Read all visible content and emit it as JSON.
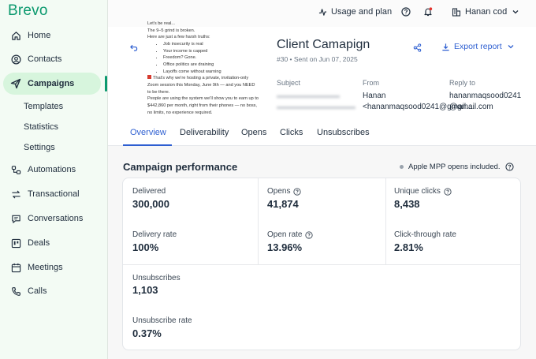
{
  "brand": {
    "logo": "Brevo",
    "accent": "#0b996e",
    "link": "#2e5fd1"
  },
  "sidebar": {
    "items": [
      {
        "label": "Home",
        "icon": "home-icon"
      },
      {
        "label": "Contacts",
        "icon": "contacts-icon"
      },
      {
        "label": "Campaigns",
        "icon": "send-icon",
        "active": true
      },
      {
        "label": "Automations",
        "icon": "automations-icon"
      },
      {
        "label": "Transactional",
        "icon": "transactional-icon"
      },
      {
        "label": "Conversations",
        "icon": "chat-icon"
      },
      {
        "label": "Deals",
        "icon": "deals-icon"
      },
      {
        "label": "Meetings",
        "icon": "calendar-icon"
      },
      {
        "label": "Calls",
        "icon": "phone-icon"
      }
    ],
    "sub_items": [
      "Templates",
      "Statistics",
      "Settings"
    ]
  },
  "topbar": {
    "usage_label": "Usage and plan",
    "user_name": "Hanan cod"
  },
  "preview": {
    "lines": [
      "Let's be real...",
      "The 9–5 grind is broken.",
      "Here are just a few harsh truths:"
    ],
    "bullets": [
      "Job insecurity is real",
      "Your income is capped",
      "Freedom? Gone.",
      "Office politics are draining",
      "Layoffs come without warning"
    ],
    "after": [
      "That's why we're hosting a private, invitation-only",
      "Zoom session this Monday, June 9th — and you NEED",
      "to be there.",
      "People are using the system we'll show you to earn up to",
      "$442,860 per month, right from their phones — no boss,",
      "no limits, no experience required."
    ]
  },
  "campaign": {
    "title": "Client Camapign",
    "meta": "#30 • Sent on Jun 07, 2025",
    "export_label": "Export report",
    "subject_label": "Subject",
    "from_label": "From",
    "from_value": "Hanan <hananmaqsood0241@gmail....",
    "reply_label": "Reply to",
    "reply_value": "hananmaqsood0241@gmail.com"
  },
  "tabs": [
    "Overview",
    "Deliverability",
    "Opens",
    "Clicks",
    "Unsubscribes"
  ],
  "performance": {
    "title": "Campaign performance",
    "mpp_note": "Apple MPP opens included.",
    "metrics": {
      "delivered": {
        "label": "Delivered",
        "value": "300,000"
      },
      "opens": {
        "label": "Opens",
        "value": "41,874"
      },
      "unique_clicks": {
        "label": "Unique clicks",
        "value": "8,438"
      },
      "delivery_rate": {
        "label": "Delivery rate",
        "value": "100%"
      },
      "open_rate": {
        "label": "Open rate",
        "value": "13.96%"
      },
      "ctr": {
        "label": "Click-through rate",
        "value": "2.81%"
      },
      "unsubscribes": {
        "label": "Unsubscribes",
        "value": "1,103"
      },
      "unsub_rate": {
        "label": "Unsubscribe rate",
        "value": "0.37%"
      }
    }
  }
}
